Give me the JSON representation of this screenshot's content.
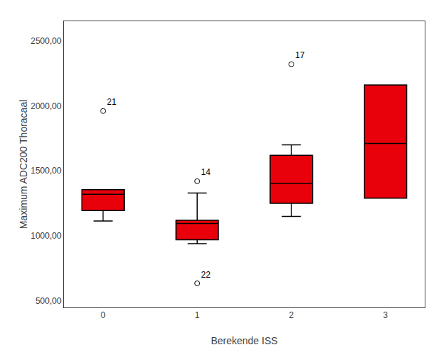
{
  "chart_data": {
    "type": "box",
    "xlabel": "Berekende ISS",
    "ylabel": "Maximum ADC200 Thoracaal",
    "categories": [
      "0",
      "1",
      "2",
      "3"
    ],
    "color": "#e8000a",
    "ylim": [
      450,
      2650
    ],
    "yticks": [
      {
        "value": 500,
        "label": "500,00"
      },
      {
        "value": 1000,
        "label": "1000,00"
      },
      {
        "value": 1500,
        "label": "1500,00"
      },
      {
        "value": 2000,
        "label": "2000,00"
      },
      {
        "value": 2500,
        "label": "2500,00"
      }
    ],
    "grid": false,
    "boxes": [
      {
        "q1": 1195,
        "median": 1320,
        "q3": 1355,
        "whisker_low": 1115,
        "whisker_high": 1355,
        "outliers": [
          1960
        ],
        "outlier_labels": [
          "21"
        ]
      },
      {
        "q1": 970,
        "median": 1095,
        "q3": 1120,
        "whisker_low": 940,
        "whisker_high": 1330,
        "outliers": [
          1420,
          635
        ],
        "outlier_labels": [
          "14",
          "22"
        ]
      },
      {
        "q1": 1250,
        "median": 1405,
        "q3": 1620,
        "whisker_low": 1150,
        "whisker_high": 1700,
        "outliers": [
          2320
        ],
        "outlier_labels": [
          "17"
        ]
      },
      {
        "q1": 1290,
        "median": 1710,
        "q3": 2160,
        "whisker_low": 1290,
        "whisker_high": 2160,
        "outliers": [],
        "outlier_labels": []
      }
    ]
  }
}
